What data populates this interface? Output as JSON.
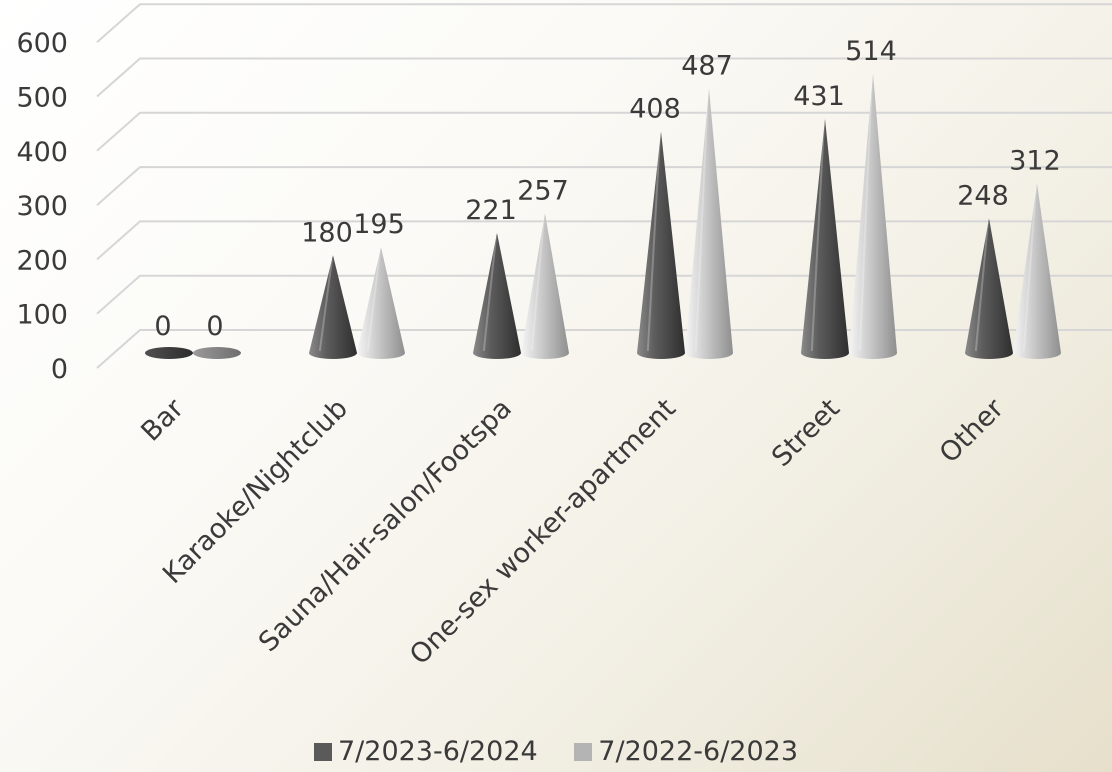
{
  "chart_data": {
    "type": "bar",
    "style": "3d-cone",
    "categories": [
      "Bar",
      "Karaoke/Nightclub",
      "Sauna/Hair-salon/Footspa",
      "One-sex worker-apartment",
      "Street",
      "Other"
    ],
    "series": [
      {
        "name": "7/2023-6/2024",
        "values": [
          0,
          180,
          221,
          408,
          431,
          248
        ],
        "color": "#5a5a5a"
      },
      {
        "name": "7/2022-6/2023",
        "values": [
          0,
          195,
          257,
          487,
          514,
          312
        ],
        "color": "#b4b4b4"
      }
    ],
    "yticks": [
      0,
      100,
      200,
      300,
      400,
      500,
      600
    ],
    "ylim": [
      0,
      600
    ],
    "grid": true,
    "legend": "bottom-center"
  }
}
